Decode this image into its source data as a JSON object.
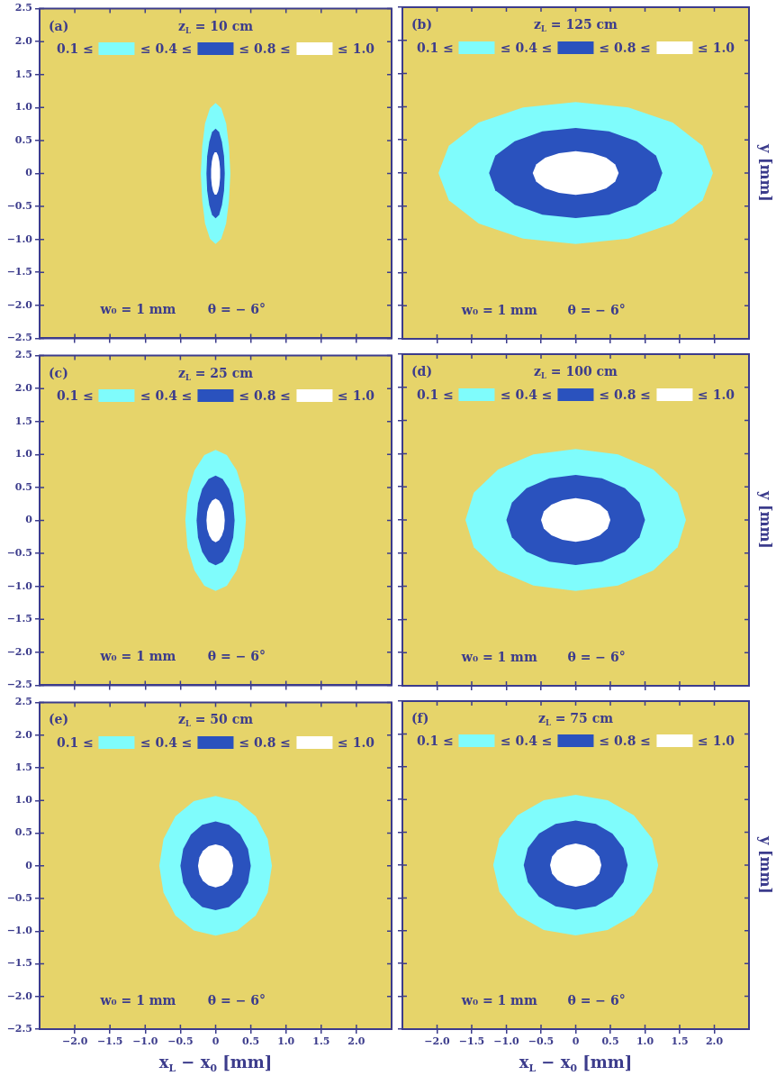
{
  "chart_data": [
    {
      "type": "area",
      "title": "z$_{L}$ = 10 cm",
      "annotations": [
        "(a)",
        "w₀ = 1 mm",
        "θ = − 6°",
        "≤ 1.0"
      ],
      "legend": "top",
      "tick_labels": "y",
      "xlim": [
        -2.5,
        2.5
      ],
      "ylim": [
        -2.5,
        2.5
      ],
      "xticks": [
        {
          "value": -2,
          "label": null
        },
        {
          "value": -1.5,
          "label": null
        },
        {
          "value": -1,
          "label": null
        },
        {
          "value": -0.5,
          "label": null
        },
        {
          "value": 0,
          "label": null
        },
        {
          "value": 0.5,
          "label": null
        },
        {
          "value": 1,
          "label": null
        },
        {
          "value": 1.5,
          "label": null
        },
        {
          "value": 2,
          "label": null
        }
      ],
      "yticks": [
        {
          "value": -2.5,
          "label": "−2.5"
        },
        {
          "value": -2,
          "label": "−2.0"
        },
        {
          "value": -1.5,
          "label": "−1.5"
        },
        {
          "value": -1,
          "label": "−1.0"
        },
        {
          "value": -0.5,
          "label": "−0.5"
        },
        0,
        0.5,
        {
          "value": 1,
          "label": "1.0"
        },
        1.5,
        {
          "value": 2,
          "label": "2.0"
        },
        2.5
      ],
      "series": [
        {
          "name": "0.1 ≤",
          "color": "#7ffcfc",
          "x": [
            0.21,
            0.19,
            0.15,
            0.08,
            0,
            -0.08,
            -0.15,
            -0.19,
            -0.21,
            -0.19,
            -0.15,
            -0.08,
            0,
            0.08,
            0.15,
            0.19,
            0.21
          ],
          "values": [
            0,
            0.41,
            0.76,
            0.99,
            1.07,
            0.99,
            0.76,
            0.41,
            0,
            -0.41,
            -0.76,
            -0.99,
            -1.07,
            -0.99,
            -0.76,
            -0.41,
            0
          ]
        },
        {
          "name": "≤ 0.4 ≤",
          "color": "#2a52be",
          "x": [
            0.13,
            0.12,
            0.09,
            0.05,
            0,
            -0.05,
            -0.09,
            -0.12,
            -0.13,
            -0.12,
            -0.09,
            -0.05,
            0,
            0.05,
            0.09,
            0.12,
            0.13
          ],
          "values": [
            0,
            0.26,
            0.48,
            0.63,
            0.68,
            0.63,
            0.48,
            0.26,
            0,
            -0.26,
            -0.48,
            -0.63,
            -0.68,
            -0.63,
            -0.48,
            -0.26,
            0
          ]
        },
        {
          "name": "≤ 0.8 ≤",
          "color": "#ffffff",
          "x": [
            0.064,
            0.054,
            0.036,
            0.013,
            -0.013,
            -0.036,
            -0.054,
            -0.064,
            -0.064,
            -0.054,
            -0.036,
            -0.013,
            0.013,
            0.036,
            0.054,
            0.064,
            0.064
          ],
          "values": [
            0.064,
            0.18,
            0.27,
            0.32,
            0.32,
            0.27,
            0.18,
            0.064,
            -0.064,
            -0.18,
            -0.27,
            -0.32,
            -0.32,
            -0.27,
            -0.18,
            -0.064,
            0.064
          ]
        }
      ]
    },
    {
      "type": "area",
      "title": "z$_{L}$ = 125 cm",
      "ylabel": "y [mm]",
      "annotations": [
        "(b)",
        "w₀ = 1 mm",
        "θ = − 6°",
        "≤ 1.0"
      ],
      "legend": "top",
      "tick_labels": false,
      "xlim": [
        -2.5,
        2.5
      ],
      "ylim": [
        -2.5,
        2.5
      ],
      "xticks": [
        {
          "value": -2,
          "label": null
        },
        {
          "value": -1.5,
          "label": null
        },
        {
          "value": -1,
          "label": null
        },
        {
          "value": -0.5,
          "label": null
        },
        {
          "value": 0,
          "label": null
        },
        {
          "value": 0.5,
          "label": null
        },
        {
          "value": 1,
          "label": null
        },
        {
          "value": 1.5,
          "label": null
        },
        {
          "value": 2,
          "label": null
        }
      ],
      "yticks": [
        {
          "value": -2.5,
          "label": null
        },
        {
          "value": -2,
          "label": null
        },
        {
          "value": -1.5,
          "label": null
        },
        {
          "value": -1,
          "label": null
        },
        {
          "value": -0.5,
          "label": null
        },
        {
          "value": 0,
          "label": null
        },
        {
          "value": 0.5,
          "label": null
        },
        {
          "value": 1,
          "label": null
        },
        {
          "value": 1.5,
          "label": null
        },
        {
          "value": 2,
          "label": null
        },
        {
          "value": 2.5,
          "label": null
        }
      ],
      "series": [
        {
          "name": "0.1 ≤",
          "color": "#7ffcfc",
          "x": [
            1.98,
            1.83,
            1.4,
            0.76,
            0,
            -0.76,
            -1.4,
            -1.83,
            -1.98,
            -1.83,
            -1.4,
            -0.76,
            0,
            0.76,
            1.4,
            1.83,
            1.98
          ],
          "values": [
            0,
            0.41,
            0.76,
            0.99,
            1.07,
            0.99,
            0.76,
            0.41,
            0,
            -0.41,
            -0.76,
            -0.99,
            -1.07,
            -0.99,
            -0.76,
            -0.41,
            0
          ]
        },
        {
          "name": "≤ 0.4 ≤",
          "color": "#2a52be",
          "x": [
            1.25,
            1.16,
            0.88,
            0.48,
            0,
            -0.48,
            -0.88,
            -1.16,
            -1.25,
            -1.16,
            -0.88,
            -0.48,
            0,
            0.48,
            0.88,
            1.16,
            1.25
          ],
          "values": [
            0,
            0.26,
            0.48,
            0.63,
            0.68,
            0.63,
            0.48,
            0.26,
            0,
            -0.26,
            -0.48,
            -0.63,
            -0.68,
            -0.63,
            -0.48,
            -0.26,
            0
          ]
        },
        {
          "name": "≤ 0.8 ≤",
          "color": "#ffffff",
          "x": [
            0.62,
            0.57,
            0.44,
            0.24,
            0,
            -0.24,
            -0.44,
            -0.57,
            -0.62,
            -0.57,
            -0.44,
            -0.24,
            0,
            0.24,
            0.44,
            0.57,
            0.62
          ],
          "values": [
            0,
            0.13,
            0.23,
            0.3,
            0.33,
            0.3,
            0.23,
            0.13,
            0,
            -0.13,
            -0.23,
            -0.3,
            -0.33,
            -0.3,
            -0.23,
            -0.13,
            0
          ]
        }
      ]
    },
    {
      "type": "area",
      "title": "z$_{L}$ = 25 cm",
      "annotations": [
        "(c)",
        "w₀ = 1 mm",
        "θ = − 6°",
        "≤ 1.0"
      ],
      "legend": "top",
      "tick_labels": "y",
      "xlim": [
        -2.5,
        2.5
      ],
      "ylim": [
        -2.5,
        2.5
      ],
      "xticks": [
        {
          "value": -2,
          "label": null
        },
        {
          "value": -1.5,
          "label": null
        },
        {
          "value": -1,
          "label": null
        },
        {
          "value": -0.5,
          "label": null
        },
        {
          "value": 0,
          "label": null
        },
        {
          "value": 0.5,
          "label": null
        },
        {
          "value": 1,
          "label": null
        },
        {
          "value": 1.5,
          "label": null
        },
        {
          "value": 2,
          "label": null
        }
      ],
      "yticks": [
        {
          "value": -2.5,
          "label": "−2.5"
        },
        {
          "value": -2,
          "label": "−2.0"
        },
        {
          "value": -1.5,
          "label": "−1.5"
        },
        {
          "value": -1,
          "label": "−1.0"
        },
        {
          "value": -0.5,
          "label": "−0.5"
        },
        0,
        0.5,
        {
          "value": 1,
          "label": "1.0"
        },
        1.5,
        {
          "value": 2,
          "label": "2.0"
        },
        2.5
      ],
      "series": [
        {
          "name": "0.1 ≤",
          "color": "#7ffcfc",
          "x": [
            0.43,
            0.4,
            0.3,
            0.16,
            0,
            -0.16,
            -0.3,
            -0.4,
            -0.43,
            -0.4,
            -0.3,
            -0.16,
            0,
            0.16,
            0.3,
            0.4,
            0.43
          ],
          "values": [
            0,
            0.41,
            0.76,
            0.99,
            1.07,
            0.99,
            0.76,
            0.41,
            0,
            -0.41,
            -0.76,
            -0.99,
            -1.07,
            -0.99,
            -0.76,
            -0.41,
            0
          ]
        },
        {
          "name": "≤ 0.4 ≤",
          "color": "#2a52be",
          "x": [
            0.27,
            0.25,
            0.19,
            0.1,
            0,
            -0.1,
            -0.19,
            -0.25,
            -0.27,
            -0.25,
            -0.19,
            -0.1,
            0,
            0.1,
            0.19,
            0.25,
            0.27
          ],
          "values": [
            0,
            0.26,
            0.48,
            0.63,
            0.68,
            0.63,
            0.48,
            0.26,
            0,
            -0.26,
            -0.48,
            -0.63,
            -0.68,
            -0.63,
            -0.48,
            -0.26,
            0
          ]
        },
        {
          "name": "≤ 0.8 ≤",
          "color": "#ffffff",
          "x": [
            0.13,
            0.12,
            0.09,
            0.05,
            0,
            -0.05,
            -0.09,
            -0.12,
            -0.13,
            -0.12,
            -0.09,
            -0.05,
            0,
            0.05,
            0.09,
            0.12,
            0.13
          ],
          "values": [
            0,
            0.13,
            0.23,
            0.3,
            0.33,
            0.3,
            0.23,
            0.13,
            0,
            -0.13,
            -0.23,
            -0.3,
            -0.33,
            -0.3,
            -0.23,
            -0.13,
            0
          ]
        }
      ]
    },
    {
      "type": "area",
      "title": "z$_{L}$ = 100 cm",
      "ylabel": "y [mm]",
      "annotations": [
        "(d)",
        "w₀ = 1 mm",
        "θ = − 6°",
        "≤ 1.0"
      ],
      "legend": "top",
      "tick_labels": false,
      "xlim": [
        -2.5,
        2.5
      ],
      "ylim": [
        -2.5,
        2.5
      ],
      "xticks": [
        {
          "value": -2,
          "label": null
        },
        {
          "value": -1.5,
          "label": null
        },
        {
          "value": -1,
          "label": null
        },
        {
          "value": -0.5,
          "label": null
        },
        {
          "value": 0,
          "label": null
        },
        {
          "value": 0.5,
          "label": null
        },
        {
          "value": 1,
          "label": null
        },
        {
          "value": 1.5,
          "label": null
        },
        {
          "value": 2,
          "label": null
        }
      ],
      "yticks": [
        {
          "value": -2.5,
          "label": null
        },
        {
          "value": -2,
          "label": null
        },
        {
          "value": -1.5,
          "label": null
        },
        {
          "value": -1,
          "label": null
        },
        {
          "value": -0.5,
          "label": null
        },
        {
          "value": 0,
          "label": null
        },
        {
          "value": 0.5,
          "label": null
        },
        {
          "value": 1,
          "label": null
        },
        {
          "value": 1.5,
          "label": null
        },
        {
          "value": 2,
          "label": null
        },
        {
          "value": 2.5,
          "label": null
        }
      ],
      "series": [
        {
          "name": "0.1 ≤",
          "color": "#7ffcfc",
          "x": [
            1.59,
            1.47,
            1.12,
            0.61,
            0,
            -0.61,
            -1.12,
            -1.47,
            -1.59,
            -1.47,
            -1.12,
            -0.61,
            0,
            0.61,
            1.12,
            1.47,
            1.59
          ],
          "values": [
            0,
            0.41,
            0.76,
            0.99,
            1.07,
            0.99,
            0.76,
            0.41,
            0,
            -0.41,
            -0.76,
            -0.99,
            -1.07,
            -0.99,
            -0.76,
            -0.41,
            0
          ]
        },
        {
          "name": "≤ 0.4 ≤",
          "color": "#2a52be",
          "x": [
            1,
            0.92,
            0.71,
            0.38,
            0,
            -0.38,
            -0.71,
            -0.92,
            -1,
            -0.92,
            -0.71,
            -0.38,
            0,
            0.38,
            0.71,
            0.92,
            1
          ],
          "values": [
            0,
            0.26,
            0.48,
            0.63,
            0.68,
            0.63,
            0.48,
            0.26,
            0,
            -0.26,
            -0.48,
            -0.63,
            -0.68,
            -0.63,
            -0.48,
            -0.26,
            0
          ]
        },
        {
          "name": "≤ 0.8 ≤",
          "color": "#ffffff",
          "x": [
            0.5,
            0.46,
            0.35,
            0.19,
            0,
            -0.19,
            -0.35,
            -0.46,
            -0.5,
            -0.46,
            -0.35,
            -0.19,
            0,
            0.19,
            0.35,
            0.46,
            0.5
          ],
          "values": [
            0,
            0.13,
            0.23,
            0.3,
            0.33,
            0.3,
            0.23,
            0.13,
            0,
            -0.13,
            -0.23,
            -0.3,
            -0.33,
            -0.3,
            -0.23,
            -0.13,
            0
          ]
        }
      ]
    },
    {
      "type": "area",
      "title": "z$_{L}$ = 50 cm",
      "xlabel": "x$_{L}$ − x$_{0}$ [mm]",
      "annotations": [
        "(e)",
        "w₀ = 1 mm",
        "θ = − 6°",
        "≤ 1.0"
      ],
      "legend": "top",
      "xlim": [
        -2.5,
        2.5
      ],
      "ylim": [
        -2.5,
        2.5
      ],
      "xticks": [
        {
          "value": -2,
          "label": "−2.0"
        },
        {
          "value": -1.5,
          "label": "−1.5"
        },
        {
          "value": -1,
          "label": "−1.0"
        },
        {
          "value": -0.5,
          "label": "−0.5"
        },
        0,
        0.5,
        {
          "value": 1,
          "label": "1.0"
        },
        1.5,
        {
          "value": 2,
          "label": "2.0"
        }
      ],
      "yticks": [
        {
          "value": -2.5,
          "label": "−2.5"
        },
        {
          "value": -2,
          "label": "−2.0"
        },
        {
          "value": -1.5,
          "label": "−1.5"
        },
        {
          "value": -1,
          "label": "−1.0"
        },
        {
          "value": -0.5,
          "label": "−0.5"
        },
        0,
        0.5,
        {
          "value": 1,
          "label": "1.0"
        },
        1.5,
        {
          "value": 2,
          "label": "2.0"
        },
        2.5
      ],
      "series": [
        {
          "name": "0.1 ≤",
          "color": "#7ffcfc",
          "x": [
            0.8,
            0.74,
            0.57,
            0.31,
            0,
            -0.31,
            -0.57,
            -0.74,
            -0.8,
            -0.74,
            -0.57,
            -0.31,
            0,
            0.31,
            0.57,
            0.74,
            0.8
          ],
          "values": [
            0,
            0.41,
            0.76,
            0.99,
            1.07,
            0.99,
            0.76,
            0.41,
            0,
            -0.41,
            -0.76,
            -0.99,
            -1.07,
            -0.99,
            -0.76,
            -0.41,
            0
          ]
        },
        {
          "name": "≤ 0.4 ≤",
          "color": "#2a52be",
          "x": [
            0.5,
            0.46,
            0.35,
            0.19,
            0,
            -0.19,
            -0.35,
            -0.46,
            -0.5,
            -0.46,
            -0.35,
            -0.19,
            0,
            0.19,
            0.35,
            0.46,
            0.5
          ],
          "values": [
            0,
            0.26,
            0.48,
            0.63,
            0.68,
            0.63,
            0.48,
            0.26,
            0,
            -0.26,
            -0.48,
            -0.63,
            -0.68,
            -0.63,
            -0.48,
            -0.26,
            0
          ]
        },
        {
          "name": "≤ 0.8 ≤",
          "color": "#ffffff",
          "x": [
            0.25,
            0.23,
            0.18,
            0.1,
            0,
            -0.1,
            -0.18,
            -0.23,
            -0.25,
            -0.23,
            -0.18,
            -0.1,
            0,
            0.1,
            0.18,
            0.23,
            0.25
          ],
          "values": [
            0,
            0.13,
            0.23,
            0.3,
            0.33,
            0.3,
            0.23,
            0.13,
            0,
            -0.13,
            -0.23,
            -0.3,
            -0.33,
            -0.3,
            -0.23,
            -0.13,
            0
          ]
        }
      ]
    },
    {
      "type": "area",
      "title": "z$_{L}$ = 75 cm",
      "xlabel": "x$_{L}$ − x$_{0}$ [mm]",
      "ylabel": "y [mm]",
      "annotations": [
        "(f)",
        "w₀ = 1 mm",
        "θ = − 6°",
        "≤ 1.0"
      ],
      "legend": "top",
      "tick_labels": "x",
      "xlim": [
        -2.5,
        2.5
      ],
      "ylim": [
        -2.5,
        2.5
      ],
      "xticks": [
        {
          "value": -2,
          "label": "−2.0"
        },
        {
          "value": -1.5,
          "label": "−1.5"
        },
        {
          "value": -1,
          "label": "−1.0"
        },
        {
          "value": -0.5,
          "label": "−0.5"
        },
        0,
        0.5,
        {
          "value": 1,
          "label": "1.0"
        },
        1.5,
        {
          "value": 2,
          "label": "2.0"
        }
      ],
      "yticks": [
        {
          "value": -2.5,
          "label": null
        },
        {
          "value": -2,
          "label": null
        },
        {
          "value": -1.5,
          "label": null
        },
        {
          "value": -1,
          "label": null
        },
        {
          "value": -0.5,
          "label": null
        },
        {
          "value": 0,
          "label": null
        },
        {
          "value": 0.5,
          "label": null
        },
        {
          "value": 1,
          "label": null
        },
        {
          "value": 1.5,
          "label": null
        },
        {
          "value": 2,
          "label": null
        },
        {
          "value": 2.5,
          "label": null
        }
      ],
      "series": [
        {
          "name": "0.1 ≤",
          "color": "#7ffcfc",
          "x": [
            1.19,
            1.1,
            0.84,
            0.46,
            0,
            -0.46,
            -0.84,
            -1.1,
            -1.19,
            -1.1,
            -0.84,
            -0.46,
            0,
            0.46,
            0.84,
            1.1,
            1.19
          ],
          "values": [
            0,
            0.41,
            0.76,
            0.99,
            1.07,
            0.99,
            0.76,
            0.41,
            0,
            -0.41,
            -0.76,
            -0.99,
            -1.07,
            -0.99,
            -0.76,
            -0.41,
            0
          ]
        },
        {
          "name": "≤ 0.4 ≤",
          "color": "#2a52be",
          "x": [
            0.75,
            0.69,
            0.53,
            0.29,
            0,
            -0.29,
            -0.53,
            -0.69,
            -0.75,
            -0.69,
            -0.53,
            -0.29,
            0,
            0.29,
            0.53,
            0.69,
            0.75
          ],
          "values": [
            0,
            0.26,
            0.48,
            0.63,
            0.68,
            0.63,
            0.48,
            0.26,
            0,
            -0.26,
            -0.48,
            -0.63,
            -0.68,
            -0.63,
            -0.48,
            -0.26,
            0
          ]
        },
        {
          "name": "≤ 0.8 ≤",
          "color": "#ffffff",
          "x": [
            0.37,
            0.34,
            0.26,
            0.14,
            0,
            -0.14,
            -0.26,
            -0.34,
            -0.37,
            -0.34,
            -0.26,
            -0.14,
            0,
            0.14,
            0.26,
            0.34,
            0.37
          ],
          "values": [
            0,
            0.13,
            0.23,
            0.3,
            0.33,
            0.3,
            0.23,
            0.13,
            0,
            -0.13,
            -0.23,
            -0.3,
            -0.33,
            -0.3,
            -0.23,
            -0.13,
            0
          ]
        }
      ]
    }
  ]
}
